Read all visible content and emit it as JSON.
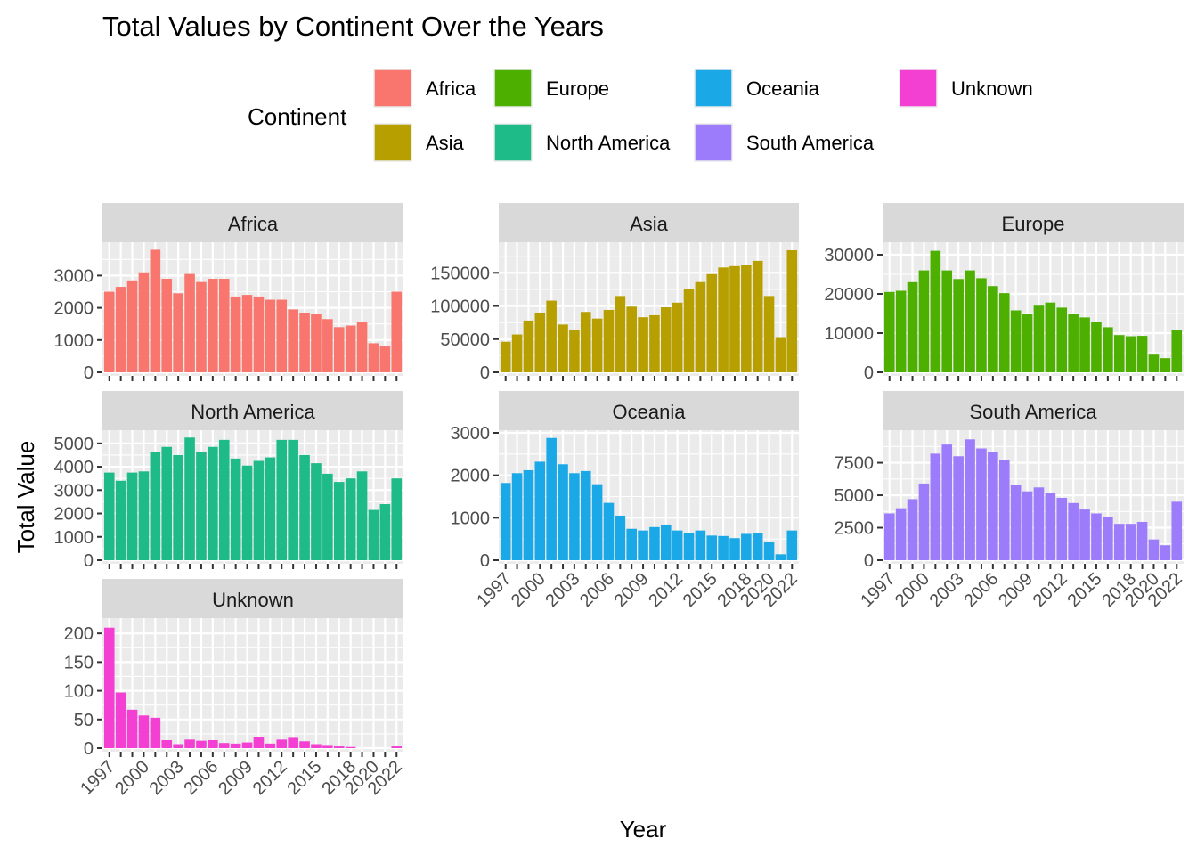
{
  "title": "Total Values by Continent Over the Years",
  "legend": {
    "title": "Continent",
    "items": [
      {
        "label": "Africa",
        "color": "#F8766D"
      },
      {
        "label": "Asia",
        "color": "#B79F00"
      },
      {
        "label": "Europe",
        "color": "#4DAF00"
      },
      {
        "label": "North America",
        "color": "#1EBA88"
      },
      {
        "label": "Oceania",
        "color": "#1AA9E6"
      },
      {
        "label": "South America",
        "color": "#9C7CFB"
      },
      {
        "label": "Unknown",
        "color": "#F33FD2"
      }
    ]
  },
  "chart_data": {
    "type": "bar",
    "title": "Total Values by Continent Over the Years",
    "xlabel": "Year",
    "ylabel": "Total Value",
    "grid": true,
    "legend_position": "top",
    "x": [
      1997,
      1998,
      1999,
      2000,
      2001,
      2002,
      2003,
      2004,
      2005,
      2006,
      2007,
      2008,
      2009,
      2010,
      2011,
      2012,
      2013,
      2014,
      2015,
      2016,
      2017,
      2018,
      2019,
      2020,
      2021,
      2022
    ],
    "x_tick_labels": [
      "1997",
      "2000",
      "2003",
      "2006",
      "2009",
      "2012",
      "2015",
      "2018",
      "2020",
      "2022"
    ],
    "series": [
      {
        "name": "Africa",
        "color": "#F8766D",
        "ylim": [
          0,
          3950
        ],
        "y_ticks": [
          "0",
          "1000",
          "2000",
          "3000"
        ],
        "values": [
          2500,
          2650,
          2850,
          3100,
          3800,
          2900,
          2450,
          3050,
          2800,
          2900,
          2900,
          2350,
          2400,
          2350,
          2250,
          2250,
          1950,
          1850,
          1800,
          1650,
          1400,
          1450,
          1550,
          900,
          800,
          2500
        ]
      },
      {
        "name": "Asia",
        "color": "#B79F00",
        "ylim": [
          0,
          192000
        ],
        "y_ticks": [
          "0",
          "50000",
          "100000",
          "150000"
        ],
        "values": [
          46000,
          57000,
          78000,
          90000,
          108000,
          72000,
          64000,
          91000,
          81000,
          94000,
          115000,
          99000,
          83000,
          86000,
          98000,
          105000,
          126000,
          136000,
          148000,
          158000,
          160000,
          162000,
          168000,
          115000,
          53000,
          184000
        ]
      },
      {
        "name": "Europe",
        "color": "#4DAF00",
        "ylim": [
          0,
          32500
        ],
        "y_ticks": [
          "0",
          "10000",
          "20000",
          "30000"
        ],
        "values": [
          20500,
          20800,
          23000,
          26000,
          31000,
          26000,
          23800,
          26000,
          24000,
          22000,
          20200,
          15800,
          15000,
          17000,
          17800,
          16500,
          15000,
          14000,
          12800,
          11500,
          9500,
          9200,
          9300,
          4500,
          3600,
          10700
        ]
      },
      {
        "name": "North America",
        "color": "#1EBA88",
        "ylim": [
          0,
          5450
        ],
        "y_ticks": [
          "0",
          "1000",
          "2000",
          "3000",
          "4000",
          "5000"
        ],
        "values": [
          3750,
          3400,
          3750,
          3800,
          4650,
          4850,
          4500,
          5250,
          4650,
          4850,
          5150,
          4350,
          4050,
          4250,
          4400,
          5150,
          5150,
          4500,
          4150,
          3700,
          3350,
          3500,
          3800,
          2150,
          2400,
          3500
        ]
      },
      {
        "name": "Oceania",
        "color": "#1AA9E6",
        "ylim": [
          0,
          3000
        ],
        "y_ticks": [
          "0",
          "1000",
          "2000",
          "3000"
        ],
        "values": [
          1820,
          2050,
          2120,
          2320,
          2880,
          2260,
          2050,
          2100,
          1790,
          1350,
          1050,
          740,
          700,
          780,
          840,
          700,
          650,
          700,
          580,
          570,
          520,
          620,
          650,
          430,
          140,
          700
        ]
      },
      {
        "name": "South America",
        "color": "#9C7CFB",
        "ylim": [
          0,
          9800
        ],
        "y_ticks": [
          "0",
          "2500",
          "5000",
          "7500"
        ],
        "values": [
          3600,
          4000,
          4700,
          5900,
          8200,
          8900,
          8000,
          9300,
          8600,
          8300,
          7700,
          5800,
          5300,
          5600,
          5200,
          4800,
          4400,
          3900,
          3600,
          3300,
          2800,
          2800,
          2950,
          1600,
          1150,
          4500
        ]
      },
      {
        "name": "Unknown",
        "color": "#F33FD2",
        "ylim": [
          0,
          222
        ],
        "y_ticks": [
          "0",
          "50",
          "100",
          "150",
          "200"
        ],
        "values": [
          210,
          97,
          67,
          57,
          53,
          14,
          7,
          15,
          13,
          14,
          9,
          8,
          10,
          20,
          8,
          15,
          18,
          12,
          7,
          4,
          3,
          2,
          0,
          0,
          0,
          3
        ]
      }
    ]
  }
}
